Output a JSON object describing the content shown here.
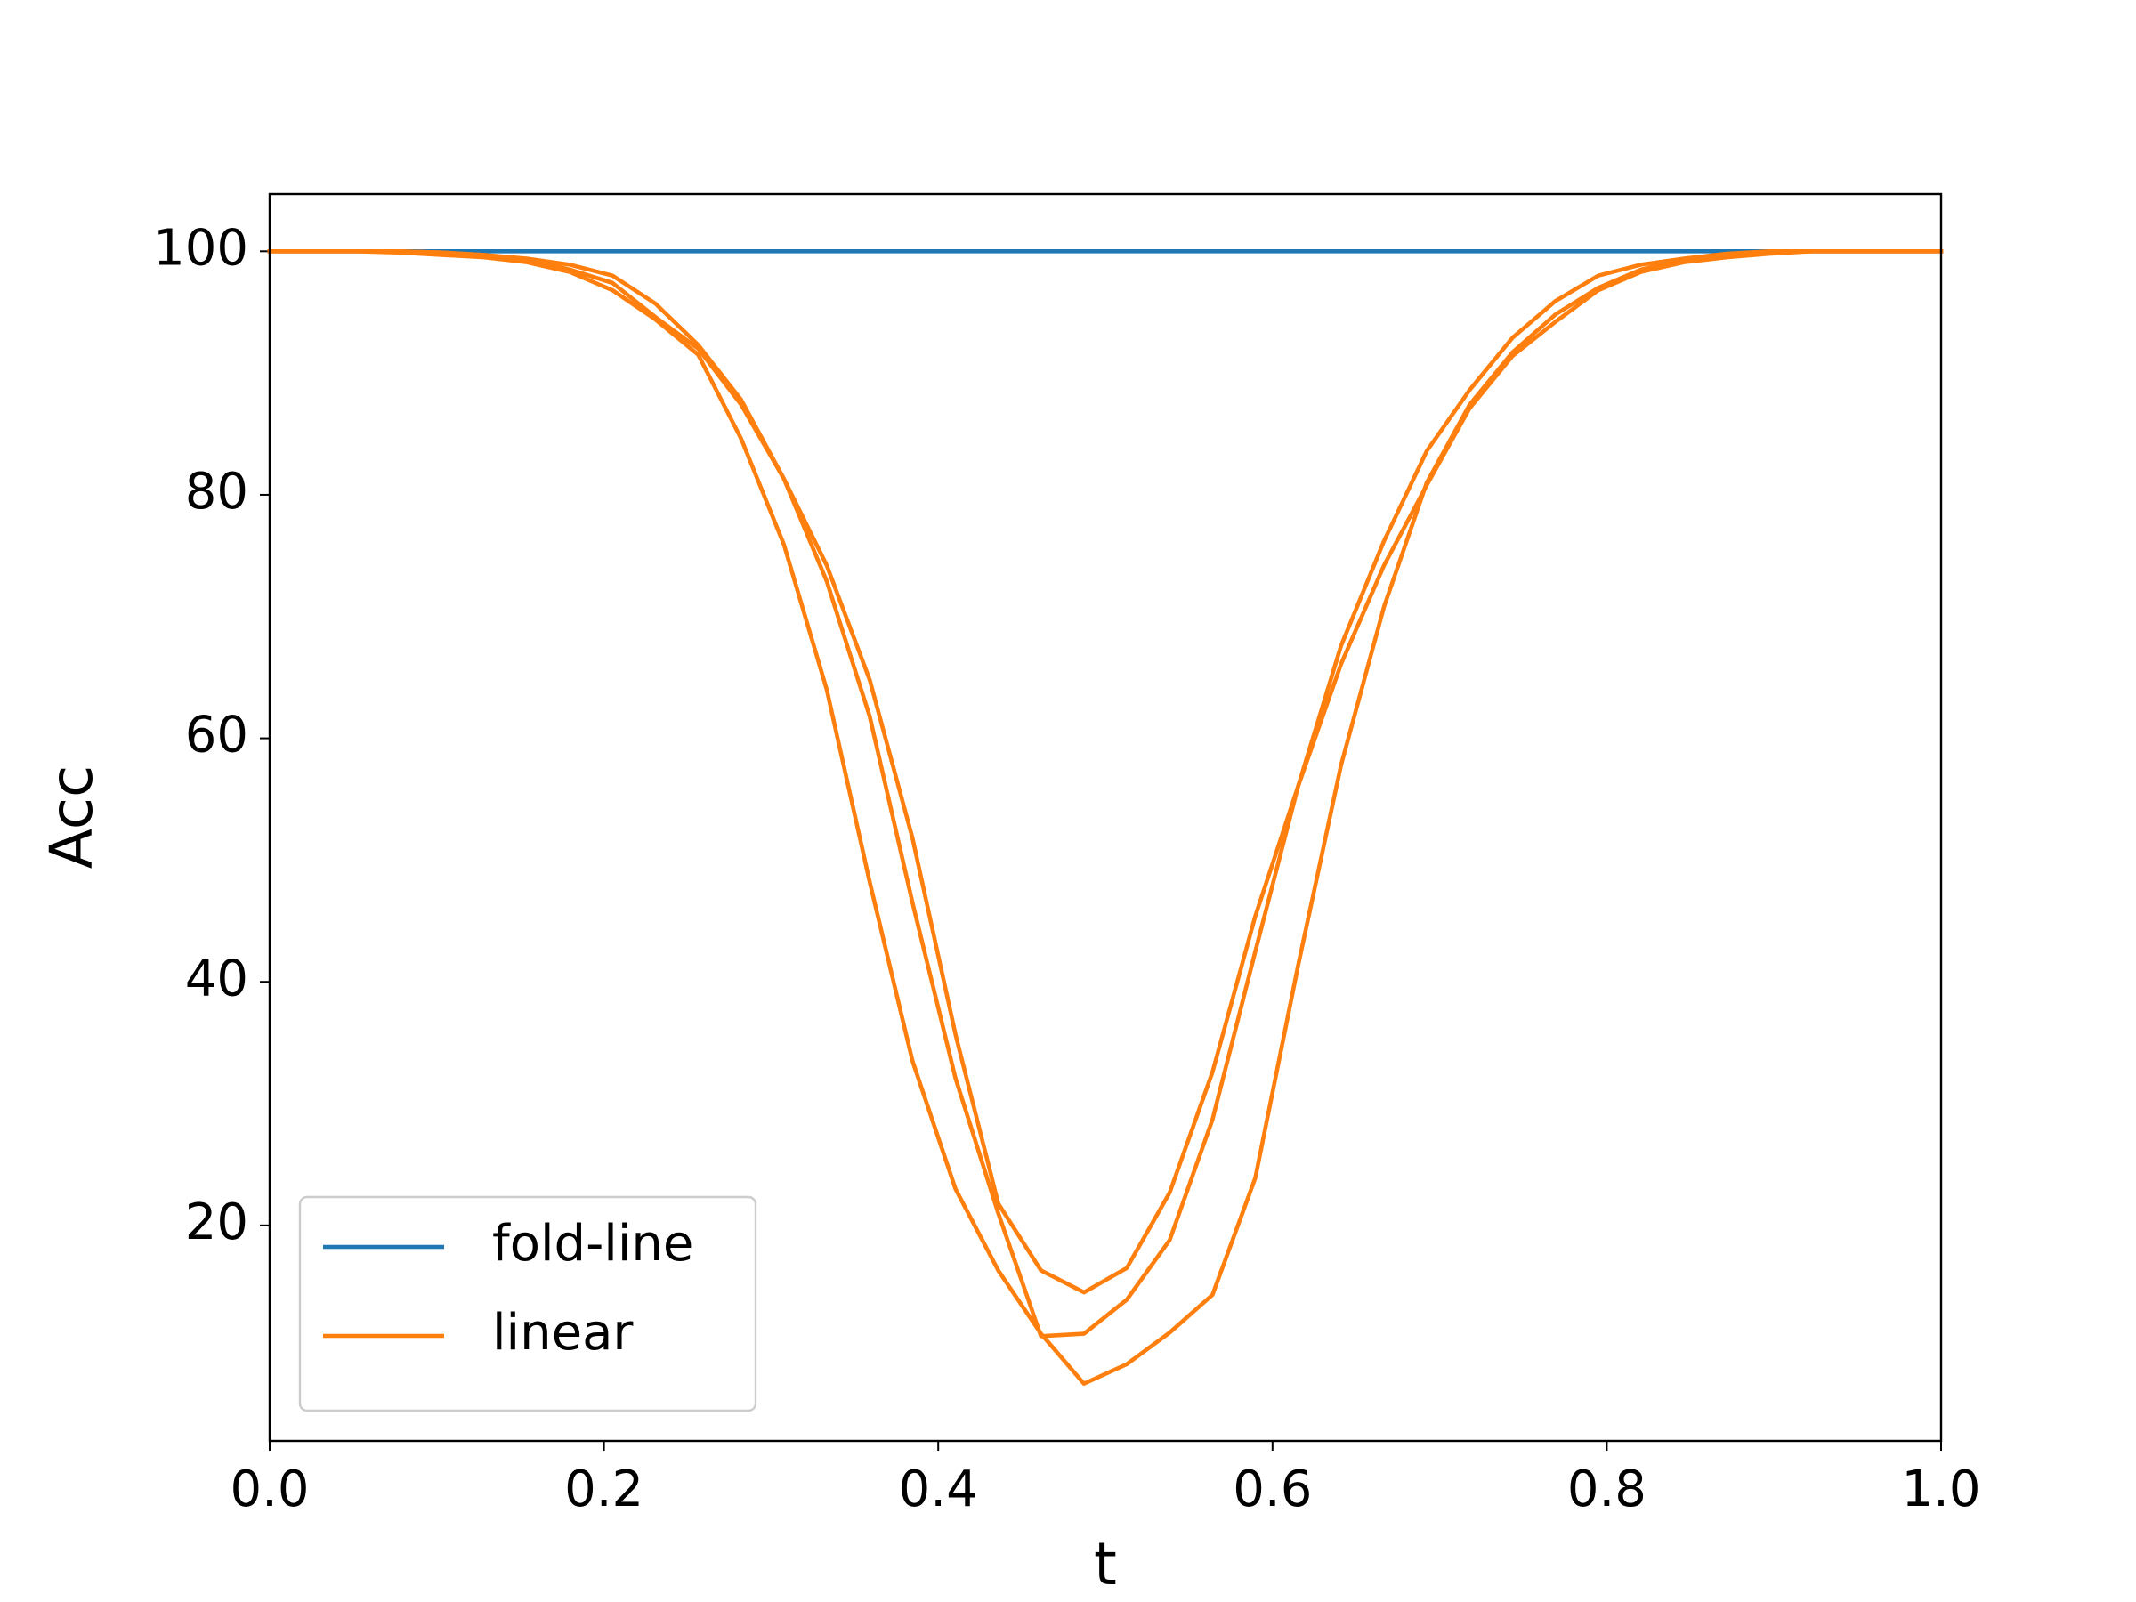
{
  "chart_data": {
    "type": "line",
    "xlabel": "t",
    "ylabel": "Acc",
    "x": [
      0,
      0.0256,
      0.0513,
      0.0769,
      0.1026,
      0.1282,
      0.1538,
      0.1795,
      0.2051,
      0.2308,
      0.2564,
      0.2821,
      0.3077,
      0.3333,
      0.359,
      0.3846,
      0.4103,
      0.4359,
      0.4615,
      0.4872,
      0.5128,
      0.5385,
      0.5641,
      0.5897,
      0.6154,
      0.641,
      0.6667,
      0.6923,
      0.7179,
      0.7436,
      0.7692,
      0.7949,
      0.8205,
      0.8462,
      0.8718,
      0.8974,
      0.9231,
      0.9487,
      0.9744,
      1
    ],
    "series": [
      {
        "name": "fold-line",
        "color": "#1f77b4",
        "values": [
          100,
          100,
          100,
          100,
          100,
          100,
          100,
          100,
          100,
          100,
          100,
          100,
          100,
          100,
          100,
          100,
          100,
          100,
          100,
          100,
          100,
          100,
          100,
          100,
          100,
          100,
          100,
          100,
          100,
          100,
          100,
          100,
          100,
          100,
          100,
          100,
          100,
          100,
          100,
          100
        ]
      },
      {
        "name": "linear",
        "color": "#ff7f0e",
        "values": [
          100,
          100,
          100,
          99.9,
          99.7,
          99.5,
          99.1,
          98.3,
          96.8,
          94.4,
          91.5,
          84.6,
          75.9,
          64,
          48.2,
          33.5,
          23,
          16.3,
          11.1,
          7,
          8.6,
          11.2,
          14.3,
          23.9,
          41.4,
          57.8,
          70.8,
          81,
          87.4,
          91.7,
          94.8,
          97,
          98.5,
          99.3,
          99.7,
          99.9,
          100,
          100,
          100,
          100
        ]
      },
      {
        "name": "linear",
        "color": "#ff7f0e",
        "values": [
          100,
          100,
          100,
          100,
          99.9,
          99.7,
          99.3,
          98.5,
          97.4,
          94.6,
          92,
          87.4,
          81.3,
          72.9,
          61.8,
          46.5,
          32.1,
          21,
          10.9,
          11.1,
          13.9,
          18.8,
          28.7,
          42.5,
          56.1,
          66.1,
          74.2,
          80.8,
          87.1,
          91.4,
          94.2,
          96.8,
          98.3,
          99.1,
          99.5,
          99.8,
          100,
          100,
          100,
          100
        ]
      },
      {
        "name": "linear",
        "color": "#ff7f0e",
        "values": [
          100,
          100,
          100,
          100,
          99.9,
          99.7,
          99.4,
          98.9,
          98,
          95.7,
          92.3,
          87.8,
          81.3,
          74.2,
          64.8,
          51.8,
          35.7,
          21.8,
          16.3,
          14.5,
          16.5,
          22.7,
          32.6,
          45.4,
          56.1,
          67.6,
          76.2,
          83.6,
          88.6,
          92.9,
          95.9,
          98,
          98.9,
          99.4,
          99.8,
          100,
          100,
          100,
          100,
          100
        ]
      }
    ],
    "xlim": [
      0,
      1
    ],
    "xticks": [
      {
        "value": 0,
        "label": "0.0"
      },
      {
        "value": 0.2,
        "label": "0.2"
      },
      {
        "value": 0.4,
        "label": "0.4"
      },
      {
        "value": 0.6,
        "label": "0.6"
      },
      {
        "value": 0.8,
        "label": "0.8"
      },
      {
        "value": 1,
        "label": "1.0"
      }
    ],
    "ylim": [
      2.3,
      104.7
    ],
    "yticks": [
      20,
      40,
      60,
      80,
      100
    ],
    "grid": false,
    "legend": "lower left"
  }
}
